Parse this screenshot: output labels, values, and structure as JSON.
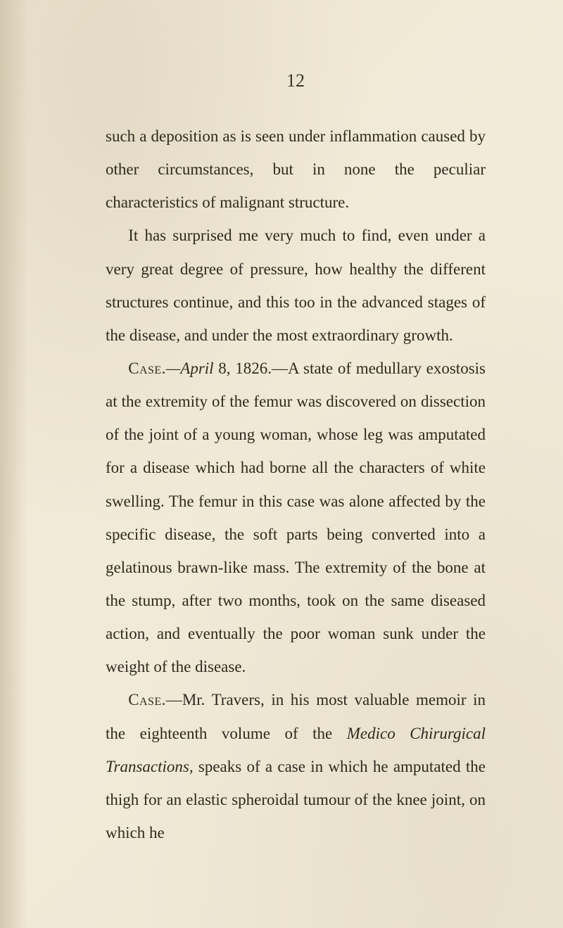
{
  "page": {
    "number": "12",
    "background_color": "#f0ead8",
    "text_color": "#2e2a1f",
    "font_family": "Times New Roman",
    "body_fontsize": 23,
    "line_height": 2.05,
    "page_number_fontsize": 26
  },
  "paragraphs": {
    "p1": "such a deposition as is seen under inflammation caused by other circumstances, but in none the peculiar characteristics of malignant structure.",
    "p2": "It has surprised me very much to find, even under a very great degree of pressure, how healthy the different structures continue, and this too in the advanced stages of the disease, and under the most extraordinary growth.",
    "p3_case": "Case.",
    "p3_date": "—April",
    "p3_rest": " 8, 1826.—A state of medullary exostosis at the extremity of the femur was dis­covered on dissection of the joint of a young woman, whose leg was amputated for a disease which had borne all the characters of white swelling. The femur in this case was alone affected by the specific disease, the soft parts being converted into a gelatinous brawn-like mass. The extremity of the bone at the stump, after two months, took on the same diseased action, and eventually the poor woman sunk under the weight of the disease.",
    "p4_case": "Case.",
    "p4_rest_a": "—Mr. Travers, in his most valuable memoir in the eighteenth volume of the ",
    "p4_italic": "Medico Chirurgical Transactions,",
    "p4_rest_b": " speaks of a case in which he amputated the thigh for an elastic spheroidal tumour of the knee joint, on which he"
  }
}
